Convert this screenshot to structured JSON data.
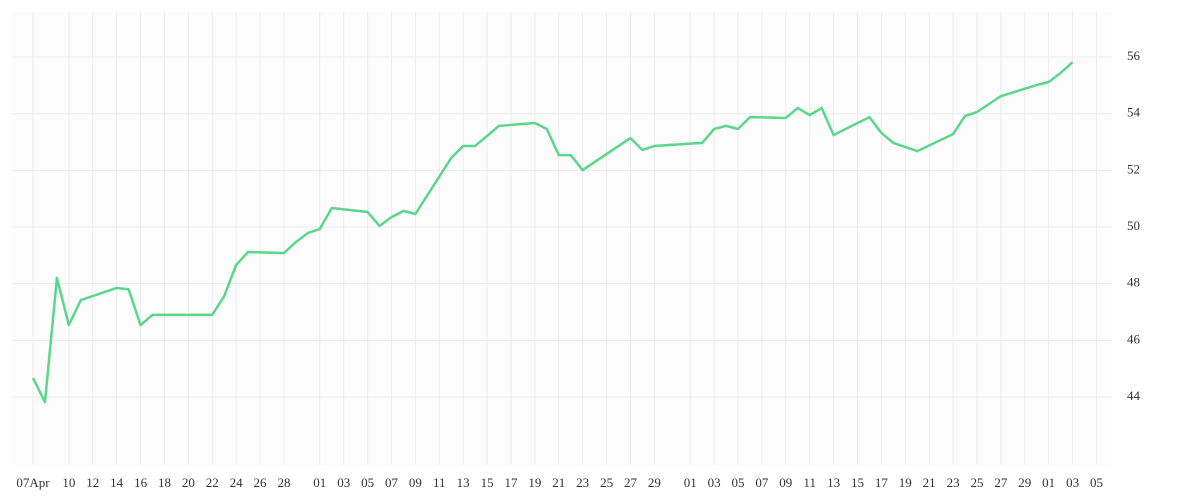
{
  "chart_data": {
    "type": "line",
    "x": [
      0,
      1,
      2,
      3,
      4,
      7,
      8,
      9,
      10,
      15,
      16,
      17,
      18,
      21,
      22,
      23,
      24,
      25,
      28,
      29,
      30,
      31,
      32,
      35,
      36,
      37,
      39,
      42,
      43,
      44,
      45,
      46,
      50,
      51,
      52,
      56,
      57,
      58,
      59,
      60,
      63,
      64,
      65,
      66,
      67,
      70,
      71,
      72,
      74,
      77,
      78,
      79,
      81,
      84,
      85,
      86,
      87
    ],
    "series": [
      {
        "color": "#5cd68a",
        "values": [
          44.67,
          43.82,
          48.2,
          46.54,
          47.42,
          47.85,
          47.8,
          46.54,
          46.9,
          46.9,
          47.56,
          48.66,
          49.12,
          49.08,
          49.47,
          49.79,
          49.93,
          50.67,
          50.53,
          50.04,
          50.35,
          50.57,
          50.46,
          52.44,
          52.86,
          52.86,
          53.57,
          53.67,
          53.46,
          52.54,
          52.54,
          52.01,
          53.14,
          52.72,
          52.86,
          52.97,
          53.46,
          53.57,
          53.46,
          53.88,
          53.85,
          54.2,
          53.95,
          54.2,
          53.25,
          53.88,
          53.32,
          52.97,
          52.68,
          53.28,
          53.92,
          54.06,
          54.62,
          55.01,
          55.12,
          55.44,
          55.82
        ]
      }
    ],
    "xlim": [
      -1.76,
      90.3
    ],
    "xticks": [
      {
        "value": 0,
        "label": "07Apr"
      },
      {
        "value": 3,
        "label": "10"
      },
      {
        "value": 5,
        "label": "12"
      },
      {
        "value": 7,
        "label": "14"
      },
      {
        "value": 9,
        "label": "16"
      },
      {
        "value": 11,
        "label": "18"
      },
      {
        "value": 13,
        "label": "20"
      },
      {
        "value": 15,
        "label": "22"
      },
      {
        "value": 17,
        "label": "24"
      },
      {
        "value": 19,
        "label": "26"
      },
      {
        "value": 21,
        "label": "28"
      },
      {
        "value": 24,
        "label": "01"
      },
      {
        "value": 26,
        "label": "03"
      },
      {
        "value": 28,
        "label": "05"
      },
      {
        "value": 30,
        "label": "07"
      },
      {
        "value": 32,
        "label": "09"
      },
      {
        "value": 34,
        "label": "11"
      },
      {
        "value": 36,
        "label": "13"
      },
      {
        "value": 38,
        "label": "15"
      },
      {
        "value": 40,
        "label": "17"
      },
      {
        "value": 42,
        "label": "19"
      },
      {
        "value": 44,
        "label": "21"
      },
      {
        "value": 46,
        "label": "23"
      },
      {
        "value": 48,
        "label": "25"
      },
      {
        "value": 50,
        "label": "27"
      },
      {
        "value": 52,
        "label": "29"
      },
      {
        "value": 55,
        "label": "01"
      },
      {
        "value": 57,
        "label": "03"
      },
      {
        "value": 59,
        "label": "05"
      },
      {
        "value": 61,
        "label": "07"
      },
      {
        "value": 63,
        "label": "09"
      },
      {
        "value": 65,
        "label": "11"
      },
      {
        "value": 67,
        "label": "13"
      },
      {
        "value": 69,
        "label": "15"
      },
      {
        "value": 71,
        "label": "17"
      },
      {
        "value": 73,
        "label": "19"
      },
      {
        "value": 75,
        "label": "21"
      },
      {
        "value": 77,
        "label": "23"
      },
      {
        "value": 79,
        "label": "25"
      },
      {
        "value": 81,
        "label": "27"
      },
      {
        "value": 83,
        "label": "29"
      },
      {
        "value": 85,
        "label": "01"
      },
      {
        "value": 87,
        "label": "03"
      },
      {
        "value": 89,
        "label": "05"
      }
    ],
    "ylim": [
      41.6,
      57.59
    ],
    "yticks": [
      44,
      46,
      48,
      50,
      52,
      54,
      56
    ],
    "grid": true
  }
}
